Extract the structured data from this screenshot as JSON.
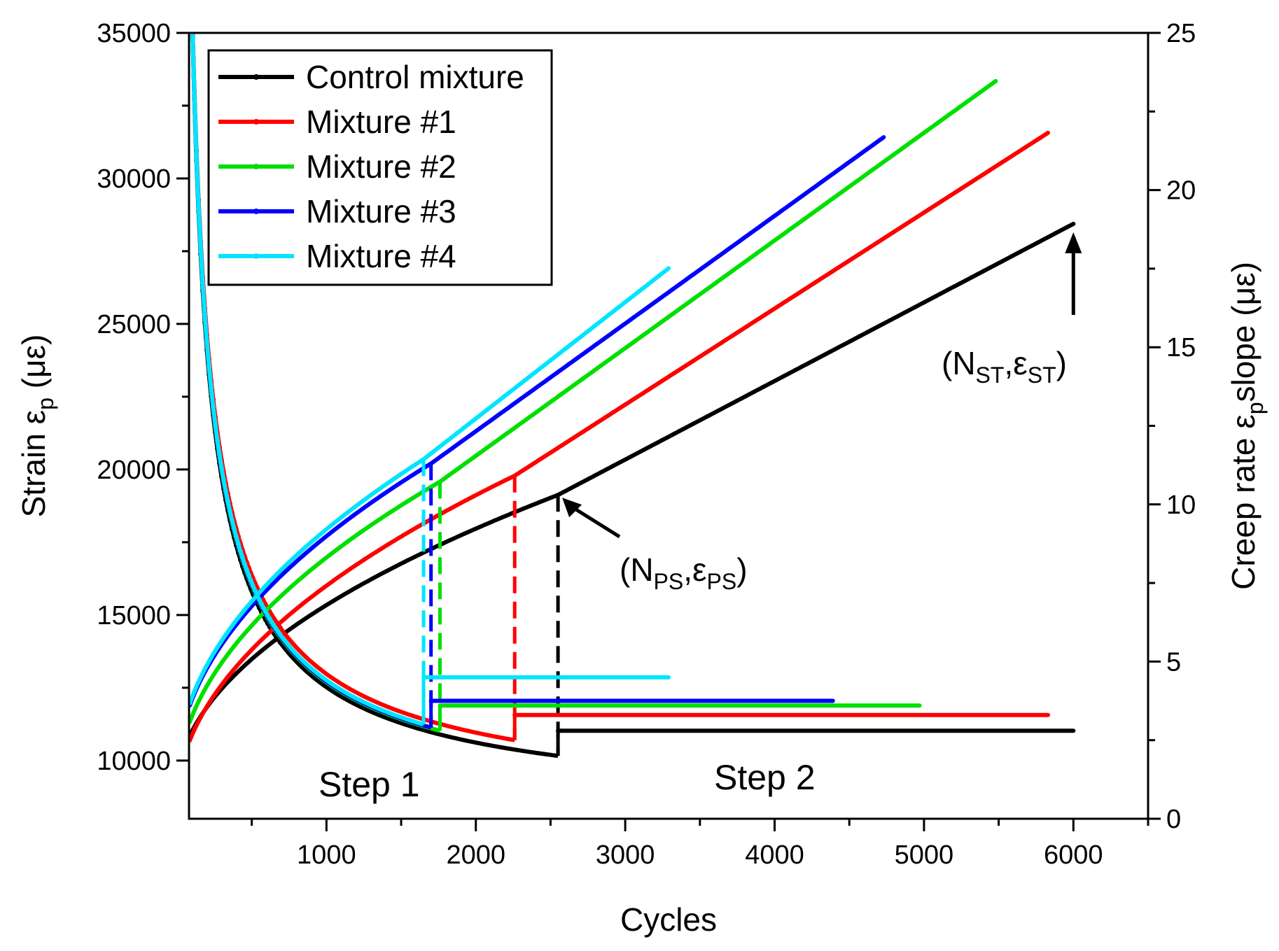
{
  "chart_data": {
    "type": "line",
    "title": "",
    "xlabel": "Cycles",
    "ylabel_left": {
      "main": "Strain ε",
      "sub": "p",
      "unit": "(με)"
    },
    "ylabel_right": {
      "main": "Creep rate ε",
      "sub": "p",
      "rest": "slope (με)"
    },
    "xlim": [
      80,
      6500
    ],
    "ylim_left": [
      8000,
      35000
    ],
    "ylim_right": [
      0,
      25
    ],
    "x_ticks": [
      1000,
      2000,
      3000,
      4000,
      5000,
      6000
    ],
    "x_tick_labels": [
      "1000",
      "2000",
      "3000",
      "4000",
      "5000",
      "6000"
    ],
    "y_left_ticks": [
      10000,
      15000,
      20000,
      25000,
      30000,
      35000
    ],
    "y_left_tick_labels": [
      "10000",
      "15000",
      "20000",
      "25000",
      "30000",
      "35000"
    ],
    "y_right_ticks": [
      0,
      5,
      10,
      15,
      20,
      25
    ],
    "y_right_tick_labels": [
      "0",
      "5",
      "10",
      "15",
      "20",
      "25"
    ],
    "legend_position": "top-left",
    "series": [
      {
        "name": "Control mixture",
        "color": "#000000",
        "strain": {
          "a": 9000,
          "k": 200.5,
          "p": 0.5,
          "Nps": 2550,
          "s2": 2.7,
          "Nend": 6000
        },
        "creep": {
          "step1_end": 2.0,
          "step2_value": 2.8,
          "Nend": 6000
        }
      },
      {
        "name": "Mixture #1",
        "color": "#ff0000",
        "strain": {
          "a": 8500,
          "k": 237.4,
          "p": 0.5,
          "Nps": 2260,
          "s2": 3.3,
          "Nend": 5830
        },
        "creep": {
          "step1_end": 2.5,
          "step2_value": 3.3,
          "Nend": 5830
        }
      },
      {
        "name": "Mixture #2",
        "color": "#00e000",
        "strain": {
          "a": 9000,
          "k": 252.2,
          "p": 0.5,
          "Nps": 1760,
          "s2": 3.7,
          "Nend": 5480
        },
        "creep": {
          "step1_end": 2.8,
          "step2_value": 3.6,
          "Nend": 4970
        }
      },
      {
        "name": "Mixture #3",
        "color": "#0000ff",
        "strain": {
          "a": 9500,
          "k": 259.6,
          "p": 0.5,
          "Nps": 1700,
          "s2": 3.7,
          "Nend": 4730
        },
        "creep": {
          "step1_end": 2.9,
          "step2_value": 3.75,
          "Nend": 4390
        }
      },
      {
        "name": "Mixture #4",
        "color": "#00e5ff",
        "strain": {
          "a": 9500,
          "k": 267.1,
          "p": 0.5,
          "Nps": 1650,
          "s2": 4.0,
          "Nend": 3290
        },
        "creep": {
          "step1_end": 3.0,
          "step2_value": 4.5,
          "Nend": 3290
        }
      }
    ],
    "annotations": [
      {
        "main": "(N",
        "sub1": "PS",
        "mid": ",ε",
        "sub2": "PS",
        "end": ")"
      },
      {
        "main": "(N",
        "sub1": "ST",
        "mid": ",ε",
        "sub2": "ST",
        "end": ")"
      }
    ],
    "step_labels": [
      "Step 1",
      "Step 2"
    ]
  }
}
